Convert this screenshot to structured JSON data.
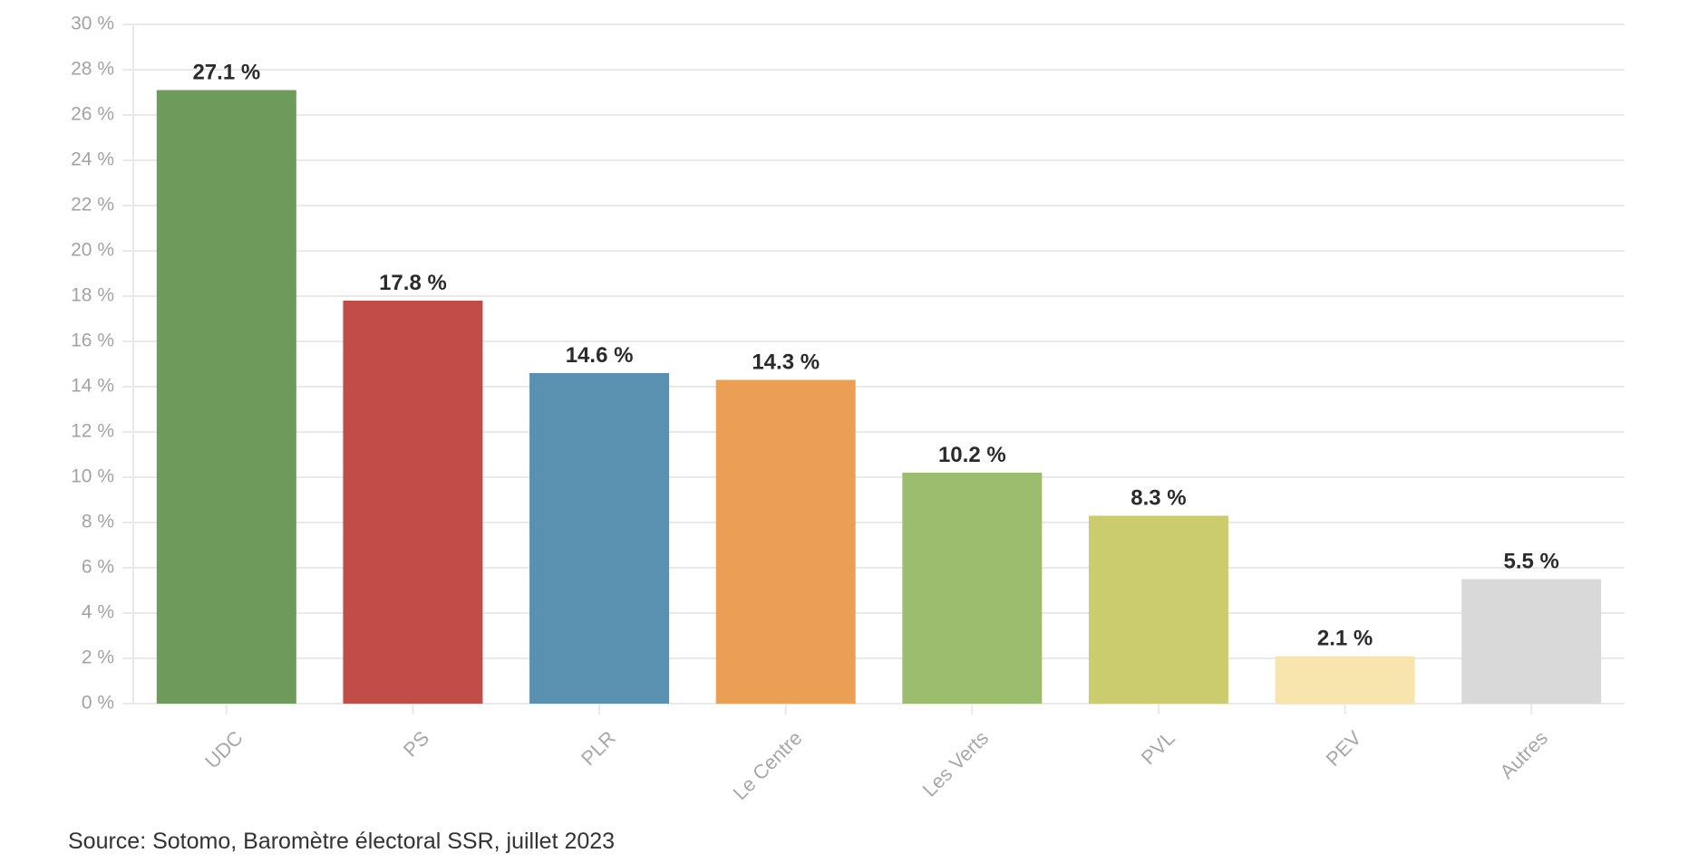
{
  "chart_data": {
    "type": "bar",
    "categories": [
      "UDC",
      "PS",
      "PLR",
      "Le Centre",
      "Les Verts",
      "PVL",
      "PEV",
      "Autres"
    ],
    "values": [
      27.1,
      17.8,
      14.6,
      14.3,
      10.2,
      8.3,
      2.1,
      5.5
    ],
    "value_labels": [
      "27.1 %",
      "17.8 %",
      "14.6 %",
      "14.3 %",
      "10.2 %",
      "8.3 %",
      "2.1 %",
      "5.5 %"
    ],
    "colors": [
      "#6e9a5c",
      "#c04d48",
      "#5b91b0",
      "#eb9f54",
      "#9bbd6d",
      "#cbcc6e",
      "#f8e5ae",
      "#d9d9d9"
    ],
    "yticks": [
      0,
      2,
      4,
      6,
      8,
      10,
      12,
      14,
      16,
      18,
      20,
      22,
      24,
      26,
      28,
      30
    ],
    "ytick_labels": [
      "0 %",
      "2 %",
      "4 %",
      "6 %",
      "8 %",
      "10 %",
      "12 %",
      "14 %",
      "16 %",
      "18 %",
      "20 %",
      "22 %",
      "24 %",
      "26 %",
      "28 %",
      "30 %"
    ],
    "ylim": [
      0,
      30
    ],
    "title": "",
    "xlabel": "",
    "ylabel": "",
    "grid": true
  },
  "source": "Source: Sotomo, Baromètre électoral SSR, juillet 2023"
}
